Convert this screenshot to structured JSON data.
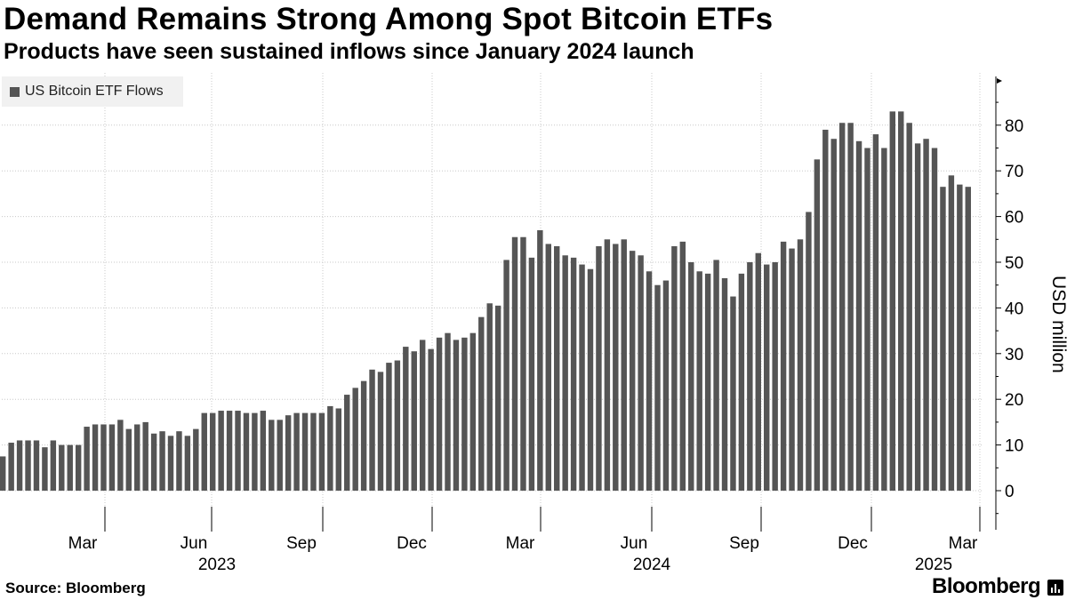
{
  "header": {
    "title": "Demand Remains Strong Among Spot Bitcoin ETFs",
    "subtitle": "Products have seen sustained inflows since January 2024 launch"
  },
  "legend": {
    "label": "US Bitcoin ETF Flows",
    "color": "#555555"
  },
  "footer": {
    "source": "Source: Bloomberg",
    "brand": "Bloomberg",
    "brand_icon": "bloomberg-terminal-icon"
  },
  "chart_data": {
    "type": "bar",
    "ylabel": "USD million",
    "xlabel": "",
    "ylim": [
      -8,
      90
    ],
    "yticks": [
      0,
      10,
      20,
      30,
      40,
      50,
      60,
      70,
      80
    ],
    "grid": true,
    "legend_position": "top-left",
    "month_ticks": [
      "Mar",
      "Jun",
      "Sep",
      "Dec",
      "Mar",
      "Jun",
      "Sep",
      "Dec",
      "Mar"
    ],
    "year_labels": [
      "2023",
      "2024",
      "2025"
    ],
    "series": [
      {
        "name": "US Bitcoin ETF Flows",
        "color": "#555555",
        "values": [
          7.5,
          10.5,
          11,
          11,
          11,
          9.5,
          11,
          10,
          10,
          10,
          14,
          14.5,
          14.5,
          14.5,
          15.5,
          13.5,
          14.5,
          15,
          12.5,
          13,
          12,
          13,
          12,
          13.5,
          17,
          17,
          17.5,
          17.5,
          17.5,
          17,
          17,
          17.5,
          15.5,
          15.5,
          16.5,
          17,
          17,
          17,
          17,
          18.5,
          18,
          21,
          22.5,
          24,
          26.5,
          26,
          28,
          28.5,
          31.5,
          30.5,
          33,
          31,
          33.5,
          34.5,
          33,
          33.5,
          34.5,
          38,
          41,
          40.5,
          50.5,
          55.5,
          55.5,
          51,
          57,
          54,
          53.5,
          51.5,
          51,
          49.5,
          48.5,
          53.5,
          55,
          54,
          55,
          52.5,
          51.5,
          48,
          45,
          46,
          53.5,
          54.5,
          50,
          48,
          47.5,
          50.5,
          46.5,
          42.5,
          47.5,
          50,
          52,
          49.5,
          50,
          54.5,
          53,
          55,
          61,
          72.5,
          79,
          77,
          80.5,
          80.5,
          76.5,
          75,
          78,
          75,
          83,
          83,
          80.5,
          76,
          77,
          75,
          66.5,
          69,
          67,
          66.5
        ]
      }
    ]
  }
}
